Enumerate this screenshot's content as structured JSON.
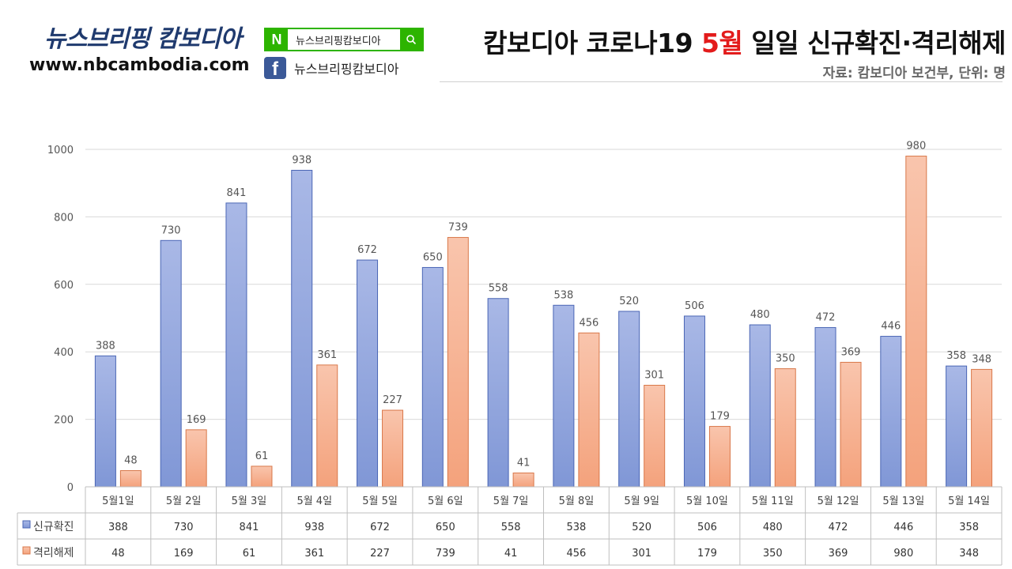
{
  "header": {
    "brand_name": "뉴스브리핑 캄보디아",
    "brand_url": "www.nbcambodia.com",
    "naver_logo": "N",
    "naver_search_text": "뉴스브리핑캄보디아",
    "naver_search_icon": "search-icon",
    "facebook_logo": "f",
    "facebook_text": "뉴스브리핑캄보디아",
    "title_before": "캄보디아 코로나19 ",
    "title_highlight": "5월",
    "title_after": " 일일 신규확진·격리해제",
    "source": "자료: 캄보디아 보건부, 단위: 명",
    "colors": {
      "brand": "#1f3a6e",
      "naver_green": "#2db400",
      "facebook_blue": "#3b5998",
      "title_highlight": "#e31b1b"
    }
  },
  "chart_data": {
    "type": "bar",
    "title": "캄보디아 코로나19 5월 일일 신규확진·격리해제",
    "ylim": [
      0,
      1000
    ],
    "yticks": [
      0,
      200,
      400,
      600,
      800,
      1000
    ],
    "grid": true,
    "legend": "data-table",
    "categories": [
      "5월1일",
      "5월 2일",
      "5월 3일",
      "5월 4일",
      "5월 5일",
      "5월 6일",
      "5월 7일",
      "5월 8일",
      "5월 9일",
      "5월 10일",
      "5월 11일",
      "5월 12일",
      "5월 13일",
      "5월 14일"
    ],
    "series": [
      {
        "name": "신규확진",
        "color": "#8fa3db",
        "values": [
          388,
          730,
          841,
          938,
          672,
          650,
          558,
          538,
          520,
          506,
          480,
          472,
          446,
          358
        ]
      },
      {
        "name": "격리해제",
        "color": "#f7b08f",
        "values": [
          48,
          169,
          61,
          361,
          227,
          739,
          41,
          456,
          301,
          179,
          350,
          369,
          980,
          348
        ]
      }
    ]
  }
}
